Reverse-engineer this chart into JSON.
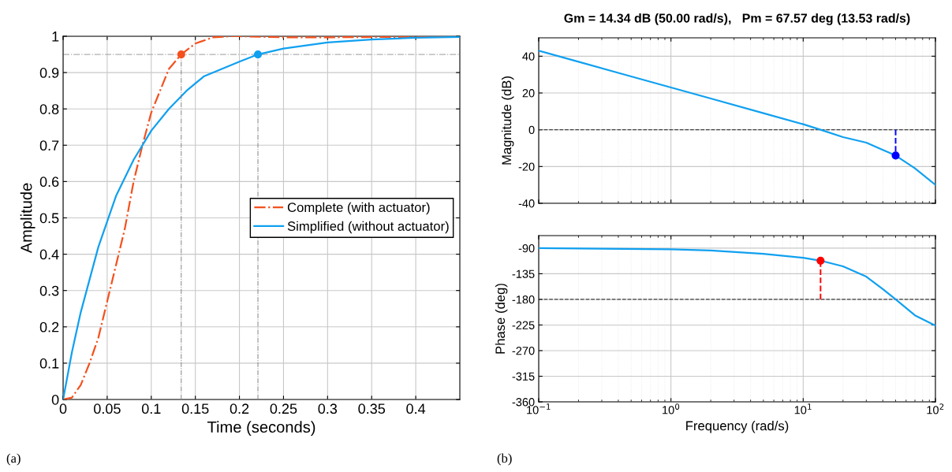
{
  "chart_data": [
    {
      "type": "line",
      "xlabel": "Time (seconds)",
      "ylabel": "Amplitude",
      "xlim": [
        0,
        0.45
      ],
      "ylim": [
        0,
        1
      ],
      "xticks": [
        0,
        0.05,
        0.1,
        0.15,
        0.2,
        0.25,
        0.3,
        0.35,
        0.4
      ],
      "yticks": [
        0,
        0.1,
        0.2,
        0.3,
        0.4,
        0.5,
        0.6,
        0.7,
        0.8,
        0.9,
        1
      ],
      "grid": true,
      "legend": "right",
      "series": [
        {
          "name": "Complete (with actuator)",
          "color": "#f4511e",
          "line_style": "dashdot",
          "x": [
            0,
            0.01,
            0.02,
            0.03,
            0.04,
            0.05,
            0.06,
            0.07,
            0.08,
            0.09,
            0.1,
            0.11,
            0.12,
            0.134,
            0.15,
            0.17,
            0.19,
            0.2,
            0.25,
            0.3,
            0.35,
            0.4,
            0.45
          ],
          "values": [
            0,
            0.005,
            0.04,
            0.1,
            0.17,
            0.27,
            0.37,
            0.47,
            0.6,
            0.7,
            0.79,
            0.85,
            0.91,
            0.95,
            0.98,
            0.997,
            1.0,
            1.0,
            0.997,
            0.997,
            0.998,
            0.998,
            0.998
          ]
        },
        {
          "name": "Simplified (without actuator)",
          "color": "#10a0f0",
          "line_style": "solid",
          "x": [
            0,
            0.01,
            0.02,
            0.03,
            0.04,
            0.05,
            0.06,
            0.07,
            0.08,
            0.09,
            0.1,
            0.12,
            0.14,
            0.16,
            0.18,
            0.2,
            0.221,
            0.25,
            0.3,
            0.35,
            0.4,
            0.45
          ],
          "values": [
            0,
            0.13,
            0.24,
            0.33,
            0.42,
            0.49,
            0.56,
            0.61,
            0.66,
            0.7,
            0.74,
            0.8,
            0.85,
            0.89,
            0.91,
            0.93,
            0.95,
            0.966,
            0.983,
            0.991,
            0.996,
            0.998
          ]
        },
        {
          "type": "line",
          "color": "#808080",
          "line_style": "dashdot",
          "x": [
            0.134,
            0.134
          ],
          "values": [
            0,
            0.95
          ]
        },
        {
          "type": "line",
          "color": "#808080",
          "line_style": "dashdot",
          "x": [
            0.221,
            0.221
          ],
          "values": [
            0,
            0.95
          ]
        },
        {
          "type": "scatter",
          "color": "#f4511e",
          "x": [
            0.134
          ],
          "values": [
            0.95
          ]
        },
        {
          "type": "scatter",
          "color": "#10a0f0",
          "x": [
            0.221
          ],
          "values": [
            0.95
          ]
        }
      ],
      "ref_lines": [
        {
          "axis": "y",
          "value": 0.95,
          "color": "#b0b0b0",
          "line_style": "dashdot"
        }
      ],
      "annotations": [
        "(a)"
      ]
    },
    {
      "type": "line",
      "title": "Gm = 14.34 dB (50.00 rad/s),   Pm = 67.57 deg (13.53 rad/s)",
      "ylabel": "Magnitude (dB)",
      "log": "x",
      "xlim": [
        0.1,
        100
      ],
      "ylim": [
        -40,
        50
      ],
      "xticks": [
        {
          "value": 0.1,
          "label": null
        },
        {
          "value": 1,
          "label": null
        },
        {
          "value": 10,
          "label": null
        },
        {
          "value": 100,
          "label": null
        }
      ],
      "yticks": [
        -40,
        -20,
        0,
        20,
        40
      ],
      "grid": true,
      "tick_labels": "y",
      "series": [
        {
          "color": "#10a0f0",
          "line_style": "solid",
          "x": [
            0.1,
            0.2,
            0.5,
            1,
            2,
            5,
            10,
            13.53,
            20,
            30,
            40,
            50,
            70,
            100
          ],
          "values": [
            43,
            37,
            29,
            23,
            17,
            9,
            3,
            0,
            -4,
            -7,
            -11,
            -14,
            -21,
            -30
          ]
        },
        {
          "type": "line",
          "color": "#0000ff",
          "line_style": "dashed",
          "x": [
            50,
            50
          ],
          "values": [
            0,
            -14
          ]
        },
        {
          "type": "scatter",
          "color": "#0000ff",
          "x": [
            50
          ],
          "values": [
            -14
          ]
        }
      ],
      "ref_lines": [
        {
          "axis": "y",
          "value": 0,
          "color": "#404040",
          "line_style": "dashed"
        }
      ]
    },
    {
      "type": "line",
      "xlabel": "Frequency (rad/s)",
      "ylabel": "Phase (deg)",
      "log": "x",
      "xlim": [
        0.1,
        100
      ],
      "ylim": [
        -360,
        -68
      ],
      "xticks": [
        {
          "value": 0.1,
          "label": "10$^{−1}$"
        },
        {
          "value": 1,
          "label": "10$^{0}$"
        },
        {
          "value": 10,
          "label": "10$^{1}$"
        },
        {
          "value": 100,
          "label": "10$^{2}$"
        }
      ],
      "yticks": [
        -360,
        -315,
        -270,
        -225,
        -180,
        -135,
        -90
      ],
      "grid": true,
      "series": [
        {
          "color": "#10a0f0",
          "line_style": "solid",
          "x": [
            0.1,
            0.3,
            1,
            2,
            5,
            10,
            13.53,
            20,
            30,
            40,
            50,
            70,
            100
          ],
          "values": [
            -90,
            -91,
            -92,
            -94,
            -100,
            -107,
            -112,
            -122,
            -140,
            -162,
            -180,
            -208,
            -226
          ]
        },
        {
          "type": "line",
          "color": "#ff0000",
          "line_style": "dashed",
          "x": [
            13.53,
            13.53
          ],
          "values": [
            -180,
            -112
          ]
        },
        {
          "type": "scatter",
          "color": "#ff0000",
          "x": [
            13.53
          ],
          "values": [
            -112
          ]
        }
      ],
      "ref_lines": [
        {
          "axis": "y",
          "value": -180,
          "color": "#404040",
          "line_style": "dashed"
        }
      ],
      "annotations": [
        "(b)"
      ]
    }
  ]
}
